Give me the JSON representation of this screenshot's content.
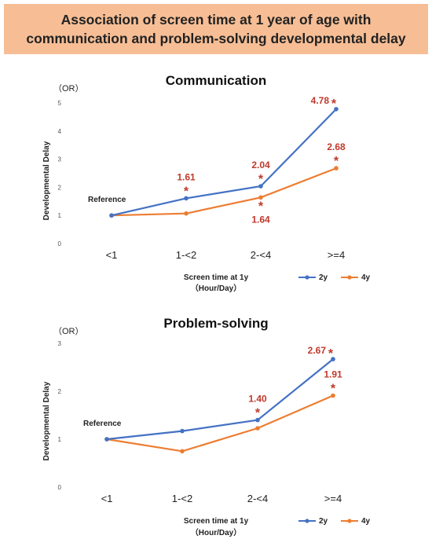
{
  "header": {
    "line1": "Association of screen time at 1 year of age with",
    "line2": "communication and problem-solving developmental delay"
  },
  "colors": {
    "series_2y": "#4472c4",
    "series_4y": "#ed7d31",
    "highlight": "#c0392b",
    "banner": "#f7be95"
  },
  "chart_data": [
    {
      "type": "line",
      "title": "Communication",
      "ylabel": "Developmental Delay",
      "yunit": "（OR）",
      "xlabel_line1": "Screen time at 1y",
      "xlabel_line2": "（Hour/Day）",
      "ylim": [
        0,
        5
      ],
      "yticks": [
        "0",
        "1",
        "2",
        "3",
        "4",
        "5"
      ],
      "categories": [
        "<1",
        "1-<2",
        "2-<4",
        ">=4"
      ],
      "series": [
        {
          "name": "2y",
          "values": [
            1.0,
            1.61,
            2.04,
            4.78
          ]
        },
        {
          "name": "4y",
          "values": [
            1.0,
            1.07,
            1.64,
            2.68
          ]
        }
      ],
      "reference_label": "Reference",
      "annotations": [
        {
          "text": "1.61",
          "star": "*",
          "series": 0,
          "index": 1,
          "place": "above"
        },
        {
          "text": "2.04",
          "star": "*",
          "series": 0,
          "index": 2,
          "place": "above"
        },
        {
          "text": "4.78",
          "star": "*",
          "series": 0,
          "index": 3,
          "place": "left"
        },
        {
          "text": "2.68",
          "star": "*",
          "series": 1,
          "index": 3,
          "place": "above"
        },
        {
          "text": "1.64",
          "star": "*",
          "series": 1,
          "index": 2,
          "place": "below"
        }
      ],
      "legend": "bottom-right",
      "grid": false
    },
    {
      "type": "line",
      "title": "Problem-solving",
      "ylabel": "Developmental Delay",
      "yunit": "（OR）",
      "xlabel_line1": "Screen time at 1y",
      "xlabel_line2": "（Hour/Day）",
      "ylim": [
        0,
        3
      ],
      "yticks": [
        "0",
        "1",
        "2",
        "3"
      ],
      "categories": [
        "<1",
        "1-<2",
        "2-<4",
        ">=4"
      ],
      "series": [
        {
          "name": "2y",
          "values": [
            1.0,
            1.17,
            1.4,
            2.67
          ]
        },
        {
          "name": "4y",
          "values": [
            1.0,
            0.75,
            1.23,
            1.91
          ]
        }
      ],
      "reference_label": "Reference",
      "annotations": [
        {
          "text": "1.40",
          "star": "*",
          "series": 0,
          "index": 2,
          "place": "above"
        },
        {
          "text": "2.67",
          "star": "*",
          "series": 0,
          "index": 3,
          "place": "left"
        },
        {
          "text": "1.91",
          "star": "*",
          "series": 1,
          "index": 3,
          "place": "above"
        }
      ],
      "legend": "bottom-right",
      "grid": false
    }
  ]
}
